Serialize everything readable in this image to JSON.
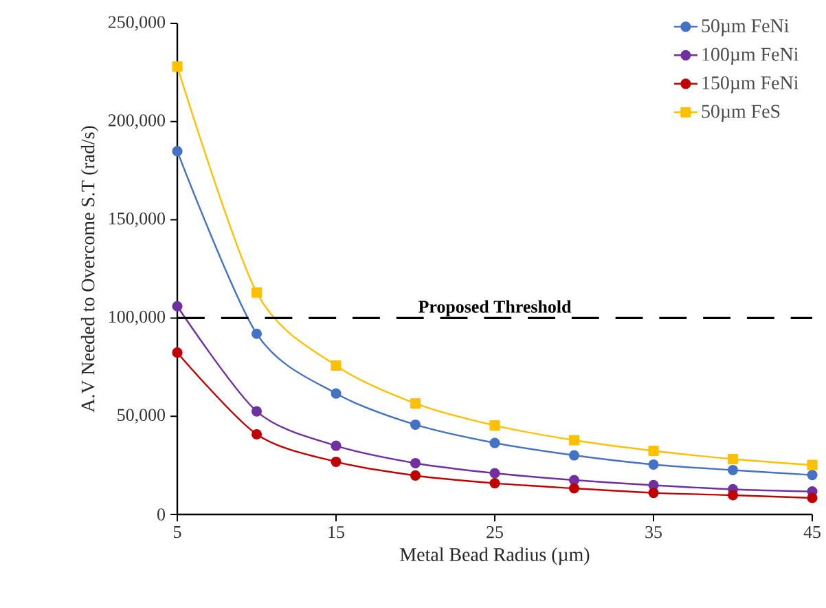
{
  "chart_data": {
    "type": "line",
    "xlabel": "Metal Bead Radius (µm)",
    "ylabel": "A.V Needed to Overcome S.T (rad/s)",
    "x": [
      5,
      10,
      15,
      20,
      25,
      30,
      35,
      40,
      45
    ],
    "series": [
      {
        "name": "50µm FeNi",
        "color": "#4472c4",
        "marker": "circle",
        "values": [
          184900,
          92000,
          61600,
          45700,
          36400,
          30100,
          25400,
          22600,
          20100
        ]
      },
      {
        "name": "100µm FeNi",
        "color": "#7030a0",
        "marker": "circle",
        "values": [
          106000,
          52500,
          35000,
          26100,
          21000,
          17500,
          14900,
          12800,
          11700
        ]
      },
      {
        "name": "150µm FeNi",
        "color": "#c00000",
        "marker": "circle",
        "values": [
          82400,
          40800,
          26800,
          19800,
          15900,
          13300,
          11000,
          9800,
          8400
        ]
      },
      {
        "name": "50µm FeS",
        "color": "#ffc000",
        "marker": "square",
        "values": [
          228000,
          113000,
          75800,
          56500,
          45300,
          37800,
          32400,
          28200,
          25200
        ]
      }
    ],
    "xlim": [
      5,
      45
    ],
    "xticks": [
      5,
      15,
      25,
      35,
      45
    ],
    "ylim": [
      0,
      250000
    ],
    "yticks": [
      0,
      {
        "value": 50000,
        "label": "50,000"
      },
      {
        "value": 100000,
        "label": "100,000"
      },
      {
        "value": 150000,
        "label": "150,000"
      },
      {
        "value": 200000,
        "label": "200,000"
      },
      {
        "value": 250000,
        "label": "250,000"
      }
    ],
    "ref_lines": [
      {
        "axis": "y",
        "value": 100000,
        "label": "Proposed Threshold",
        "color": "#000000",
        "line_style": "dashed"
      }
    ],
    "grid": false,
    "legend": "top right",
    "line_style": "solid"
  }
}
